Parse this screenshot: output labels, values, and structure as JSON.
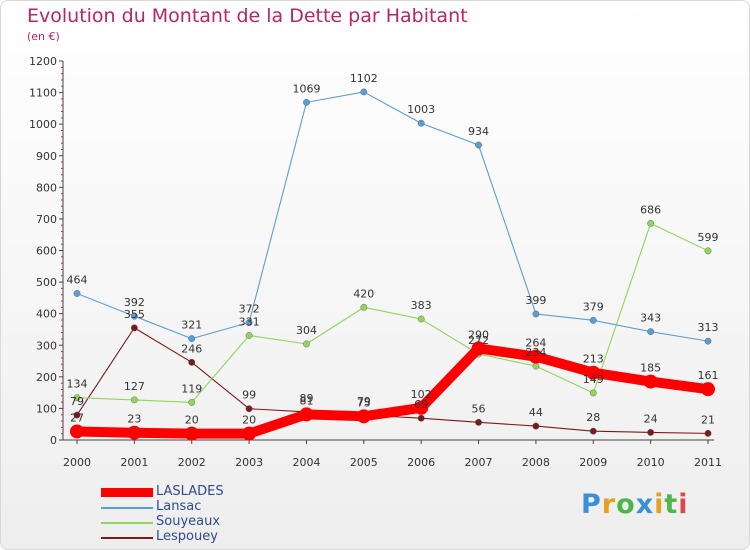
{
  "chart_data": {
    "type": "line",
    "title": "Evolution du Montant de la Dette par Habitant",
    "subtitle": "(en €)",
    "categories": [
      "2000",
      "2001",
      "2002",
      "2003",
      "2004",
      "2005",
      "2006",
      "2007",
      "2008",
      "2009",
      "2010",
      "2011"
    ],
    "ylim": [
      0,
      1200
    ],
    "yticks": [
      0,
      100,
      200,
      300,
      400,
      500,
      600,
      700,
      800,
      900,
      1000,
      1100,
      1200
    ],
    "grid": false,
    "legend_position": "bottom-left",
    "series": [
      {
        "name": "LASLADES",
        "color": "#ff0000",
        "values": [
          27,
          23,
          20,
          20,
          81,
          75,
          102,
          290,
          264,
          213,
          185,
          161
        ]
      },
      {
        "name": "Lansac",
        "color": "#5a9fd4",
        "values": [
          464,
          392,
          321,
          372,
          1069,
          1102,
          1003,
          934,
          399,
          379,
          343,
          313
        ]
      },
      {
        "name": "Souyeaux",
        "color": "#8fd65a",
        "values": [
          134,
          127,
          119,
          331,
          304,
          420,
          383,
          272,
          234,
          149,
          686,
          599
        ]
      },
      {
        "name": "Lespouey",
        "color": "#7a1a1a",
        "values": [
          79,
          355,
          246,
          99,
          89,
          79,
          69,
          56,
          44,
          28,
          24,
          21
        ]
      }
    ]
  },
  "logo": {
    "letters": [
      {
        "ch": "P",
        "color": "#3a8fd9"
      },
      {
        "ch": "r",
        "color": "#e8a020"
      },
      {
        "ch": "o",
        "color": "#4cb848"
      },
      {
        "ch": "x",
        "color": "#3a8fd9"
      },
      {
        "ch": "i",
        "color": "#e8a020"
      },
      {
        "ch": "t",
        "color": "#4cb848"
      },
      {
        "ch": "i",
        "color": "#e04848"
      }
    ]
  }
}
